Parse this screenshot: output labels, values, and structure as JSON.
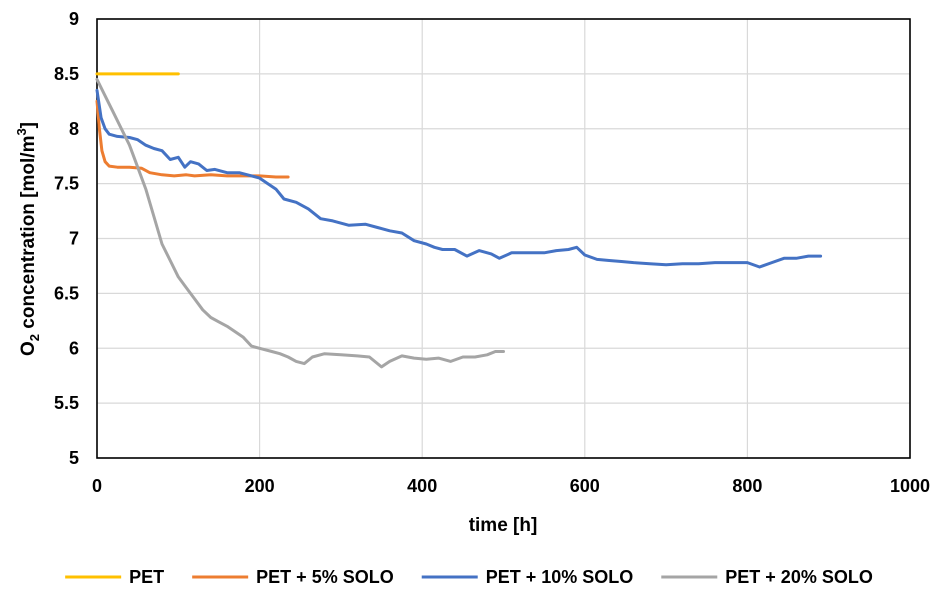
{
  "chart_data": {
    "type": "line",
    "xlabel": "time [h]",
    "ylabel_parts": {
      "o": "O",
      "o_sub": "2",
      "mid": " concentration  [mol/m",
      "sup": "3",
      "end": "]"
    },
    "xlim": [
      0,
      1000
    ],
    "ylim": [
      5,
      9
    ],
    "x_ticks": [
      0,
      200,
      400,
      600,
      800,
      1000
    ],
    "y_ticks": [
      5,
      5.5,
      6,
      6.5,
      7,
      7.5,
      8,
      8.5,
      9
    ],
    "x_tick_labels": [
      "0",
      "200",
      "400",
      "600",
      "800",
      "1000"
    ],
    "y_tick_labels": [
      "5",
      "5.5",
      "6",
      "6.5",
      "7",
      "7.5",
      "8",
      "8.5",
      "9"
    ],
    "grid": true,
    "legend_position": "bottom",
    "series": [
      {
        "name": "PET",
        "color": "#FFC000",
        "points": [
          [
            0,
            8.5
          ],
          [
            100,
            8.5
          ]
        ]
      },
      {
        "name": "PET + 5% SOLO",
        "color": "#ED7D31",
        "points": [
          [
            0,
            8.25
          ],
          [
            3,
            8.0
          ],
          [
            6,
            7.8
          ],
          [
            10,
            7.7
          ],
          [
            15,
            7.66
          ],
          [
            25,
            7.65
          ],
          [
            40,
            7.65
          ],
          [
            55,
            7.64
          ],
          [
            65,
            7.6
          ],
          [
            80,
            7.58
          ],
          [
            95,
            7.57
          ],
          [
            110,
            7.58
          ],
          [
            120,
            7.57
          ],
          [
            140,
            7.58
          ],
          [
            160,
            7.57
          ],
          [
            180,
            7.57
          ],
          [
            200,
            7.57
          ],
          [
            220,
            7.56
          ],
          [
            235,
            7.56
          ]
        ]
      },
      {
        "name": "PET + 10% SOLO",
        "color": "#4472C4",
        "points": [
          [
            0,
            8.35
          ],
          [
            5,
            8.1
          ],
          [
            10,
            8.0
          ],
          [
            15,
            7.95
          ],
          [
            25,
            7.93
          ],
          [
            40,
            7.92
          ],
          [
            50,
            7.9
          ],
          [
            60,
            7.85
          ],
          [
            70,
            7.82
          ],
          [
            80,
            7.8
          ],
          [
            90,
            7.72
          ],
          [
            100,
            7.74
          ],
          [
            108,
            7.65
          ],
          [
            115,
            7.7
          ],
          [
            125,
            7.68
          ],
          [
            135,
            7.62
          ],
          [
            145,
            7.63
          ],
          [
            160,
            7.6
          ],
          [
            175,
            7.6
          ],
          [
            185,
            7.58
          ],
          [
            200,
            7.55
          ],
          [
            210,
            7.5
          ],
          [
            220,
            7.45
          ],
          [
            230,
            7.36
          ],
          [
            245,
            7.33
          ],
          [
            260,
            7.27
          ],
          [
            275,
            7.18
          ],
          [
            290,
            7.16
          ],
          [
            310,
            7.12
          ],
          [
            330,
            7.13
          ],
          [
            345,
            7.1
          ],
          [
            360,
            7.07
          ],
          [
            375,
            7.05
          ],
          [
            390,
            6.98
          ],
          [
            405,
            6.95
          ],
          [
            415,
            6.92
          ],
          [
            425,
            6.9
          ],
          [
            440,
            6.9
          ],
          [
            455,
            6.84
          ],
          [
            470,
            6.89
          ],
          [
            485,
            6.86
          ],
          [
            495,
            6.82
          ],
          [
            510,
            6.87
          ],
          [
            530,
            6.87
          ],
          [
            550,
            6.87
          ],
          [
            565,
            6.89
          ],
          [
            580,
            6.9
          ],
          [
            590,
            6.92
          ],
          [
            600,
            6.85
          ],
          [
            615,
            6.81
          ],
          [
            630,
            6.8
          ],
          [
            645,
            6.79
          ],
          [
            660,
            6.78
          ],
          [
            680,
            6.77
          ],
          [
            700,
            6.76
          ],
          [
            720,
            6.77
          ],
          [
            740,
            6.77
          ],
          [
            760,
            6.78
          ],
          [
            780,
            6.78
          ],
          [
            800,
            6.78
          ],
          [
            815,
            6.74
          ],
          [
            830,
            6.78
          ],
          [
            845,
            6.82
          ],
          [
            860,
            6.82
          ],
          [
            875,
            6.84
          ],
          [
            890,
            6.84
          ]
        ]
      },
      {
        "name": "PET + 20% SOLO",
        "color": "#A5A5A5",
        "points": [
          [
            0,
            8.45
          ],
          [
            10,
            8.3
          ],
          [
            20,
            8.15
          ],
          [
            30,
            8.0
          ],
          [
            40,
            7.85
          ],
          [
            50,
            7.65
          ],
          [
            60,
            7.45
          ],
          [
            70,
            7.2
          ],
          [
            80,
            6.95
          ],
          [
            90,
            6.8
          ],
          [
            100,
            6.65
          ],
          [
            110,
            6.55
          ],
          [
            120,
            6.45
          ],
          [
            130,
            6.35
          ],
          [
            140,
            6.28
          ],
          [
            150,
            6.24
          ],
          [
            160,
            6.2
          ],
          [
            170,
            6.15
          ],
          [
            180,
            6.1
          ],
          [
            190,
            6.02
          ],
          [
            200,
            6.0
          ],
          [
            215,
            5.97
          ],
          [
            225,
            5.95
          ],
          [
            235,
            5.92
          ],
          [
            245,
            5.88
          ],
          [
            255,
            5.86
          ],
          [
            265,
            5.92
          ],
          [
            280,
            5.95
          ],
          [
            300,
            5.94
          ],
          [
            320,
            5.93
          ],
          [
            335,
            5.92
          ],
          [
            350,
            5.83
          ],
          [
            360,
            5.88
          ],
          [
            375,
            5.93
          ],
          [
            390,
            5.91
          ],
          [
            405,
            5.9
          ],
          [
            420,
            5.91
          ],
          [
            435,
            5.88
          ],
          [
            450,
            5.92
          ],
          [
            465,
            5.92
          ],
          [
            480,
            5.94
          ],
          [
            490,
            5.97
          ],
          [
            500,
            5.97
          ]
        ]
      }
    ]
  }
}
